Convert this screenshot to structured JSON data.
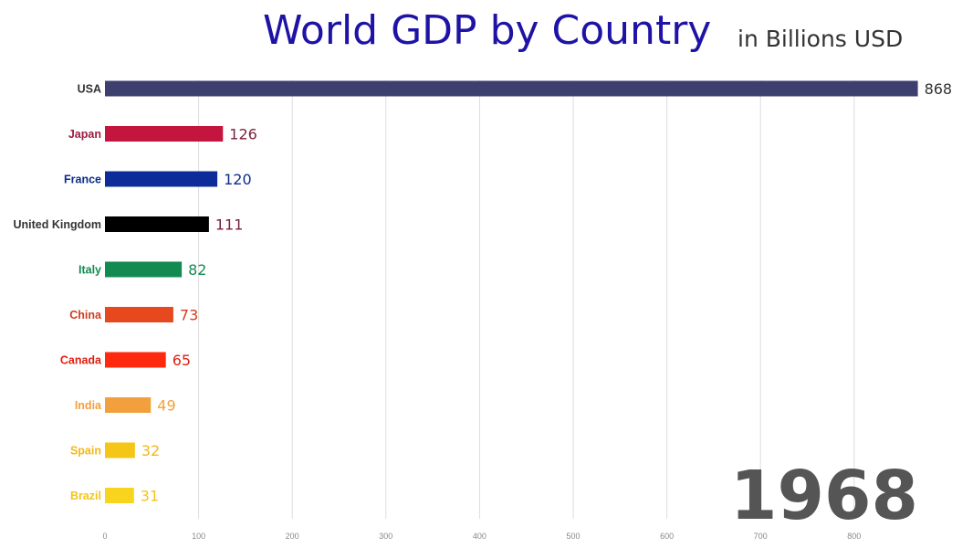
{
  "header": {
    "title": "World GDP by Country",
    "subtitle": "in Billions USD"
  },
  "year": "1968",
  "chart_data": {
    "type": "bar",
    "orientation": "horizontal",
    "title": "World GDP by Country",
    "subtitle": "in Billions USD",
    "xlabel": "",
    "ylabel": "",
    "xlim": [
      0,
      870
    ],
    "grid": true,
    "x_ticks": [
      0,
      100,
      200,
      300,
      400,
      500,
      600,
      700,
      800
    ],
    "categories": [
      "USA",
      "Japan",
      "France",
      "United Kingdom",
      "Italy",
      "China",
      "Canada",
      "India",
      "Spain",
      "Brazil"
    ],
    "values": [
      868,
      126,
      120,
      111,
      82,
      73,
      65,
      49,
      32,
      31
    ],
    "bar_colors": [
      "#3d3f6e",
      "#c4153f",
      "#0d2c99",
      "#000000",
      "#138a52",
      "#e8481e",
      "#ff2a0d",
      "#f2a03d",
      "#f5c518",
      "#f8d41f"
    ],
    "label_colors": [
      "#333333",
      "#9b1b3e",
      "#0d2c8a",
      "#333333",
      "#138a52",
      "#d13c1e",
      "#e01f10",
      "#f2a03d",
      "#f2b81a",
      "#f5c518"
    ],
    "value_colors": [
      "#333333",
      "#7a1f3a",
      "#0d2c8a",
      "#7a1f3a",
      "#138a52",
      "#d13c1e",
      "#e01f10",
      "#f2a03d",
      "#f2b81a",
      "#f5c518"
    ]
  }
}
